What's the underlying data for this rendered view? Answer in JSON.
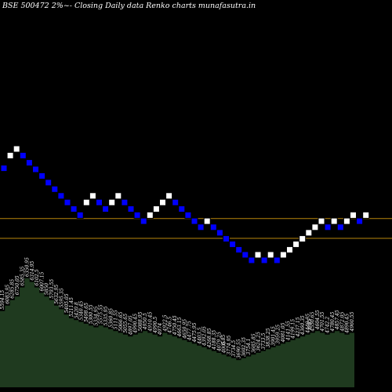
{
  "chart_data": {
    "type": "renko",
    "title": "BSE 500472  2%~-  Closing Daily data  Renko  charts munafasutra.in",
    "colors": {
      "background": "#000000",
      "up_brick": "#ffffff",
      "down_brick": "#0000ff",
      "brick_outline": "#000000",
      "reference_line": "#b8860b",
      "volume_fill": "#1f3a1f",
      "volume_label": "#ffffff"
    },
    "reference_levels": [
      5380,
      4950
    ],
    "bricks": [
      {
        "dir": "down",
        "value": 6250
      },
      {
        "dir": "up",
        "value": 6480
      },
      {
        "dir": "up",
        "value": 6600
      },
      {
        "dir": "down",
        "value": 6480
      },
      {
        "dir": "down",
        "value": 6350
      },
      {
        "dir": "down",
        "value": 6230
      },
      {
        "dir": "down",
        "value": 6110
      },
      {
        "dir": "down",
        "value": 5990
      },
      {
        "dir": "down",
        "value": 5870
      },
      {
        "dir": "down",
        "value": 5750
      },
      {
        "dir": "down",
        "value": 5630
      },
      {
        "dir": "down",
        "value": 5510
      },
      {
        "dir": "down",
        "value": 5400
      },
      {
        "dir": "up",
        "value": 5630
      },
      {
        "dir": "up",
        "value": 5750
      },
      {
        "dir": "down",
        "value": 5630
      },
      {
        "dir": "down",
        "value": 5510
      },
      {
        "dir": "up",
        "value": 5630
      },
      {
        "dir": "up",
        "value": 5750
      },
      {
        "dir": "down",
        "value": 5630
      },
      {
        "dir": "down",
        "value": 5510
      },
      {
        "dir": "down",
        "value": 5400
      },
      {
        "dir": "down",
        "value": 5290
      },
      {
        "dir": "up",
        "value": 5400
      },
      {
        "dir": "up",
        "value": 5510
      },
      {
        "dir": "up",
        "value": 5630
      },
      {
        "dir": "up",
        "value": 5750
      },
      {
        "dir": "down",
        "value": 5630
      },
      {
        "dir": "down",
        "value": 5510
      },
      {
        "dir": "down",
        "value": 5400
      },
      {
        "dir": "down",
        "value": 5290
      },
      {
        "dir": "down",
        "value": 5180
      },
      {
        "dir": "up",
        "value": 5290
      },
      {
        "dir": "down",
        "value": 5180
      },
      {
        "dir": "down",
        "value": 5080
      },
      {
        "dir": "down",
        "value": 4970
      },
      {
        "dir": "down",
        "value": 4870
      },
      {
        "dir": "down",
        "value": 4770
      },
      {
        "dir": "down",
        "value": 4680
      },
      {
        "dir": "down",
        "value": 4580
      },
      {
        "dir": "up",
        "value": 4680
      },
      {
        "dir": "down",
        "value": 4580
      },
      {
        "dir": "up",
        "value": 4680
      },
      {
        "dir": "down",
        "value": 4580
      },
      {
        "dir": "up",
        "value": 4680
      },
      {
        "dir": "up",
        "value": 4770
      },
      {
        "dir": "up",
        "value": 4870
      },
      {
        "dir": "up",
        "value": 4970
      },
      {
        "dir": "up",
        "value": 5080
      },
      {
        "dir": "up",
        "value": 5180
      },
      {
        "dir": "up",
        "value": 5290
      },
      {
        "dir": "down",
        "value": 5180
      },
      {
        "dir": "up",
        "value": 5290
      },
      {
        "dir": "down",
        "value": 5180
      },
      {
        "dir": "up",
        "value": 5290
      },
      {
        "dir": "up",
        "value": 5400
      },
      {
        "dir": "down",
        "value": 5290
      },
      {
        "dir": "up",
        "value": 5400
      }
    ],
    "volume_bars": [
      {
        "value": 0.42,
        "label": "5594.15"
      },
      {
        "value": 0.45,
        "label": "6083.95"
      },
      {
        "value": 0.48,
        "label": "6285.85"
      },
      {
        "value": 0.5,
        "label": "6750.05"
      },
      {
        "value": 0.55,
        "label": "6585.35"
      },
      {
        "value": 0.6,
        "label": "6350.95"
      },
      {
        "value": 0.58,
        "label": "6314.95"
      },
      {
        "value": 0.55,
        "label": "6102.5"
      },
      {
        "value": 0.52,
        "label": "6007.15"
      },
      {
        "value": 0.5,
        "label": "5850"
      },
      {
        "value": 0.48,
        "label": "5793.55"
      },
      {
        "value": 0.45,
        "label": "5632.95"
      },
      {
        "value": 0.43,
        "label": "5595.35"
      },
      {
        "value": 0.4,
        "label": "5405.05"
      },
      {
        "value": 0.38,
        "label": "5211.45"
      },
      {
        "value": 0.37,
        "label": "5420.8"
      },
      {
        "value": 0.36,
        "label": "5340.45"
      },
      {
        "value": 0.35,
        "label": "5498.65"
      },
      {
        "value": 0.34,
        "label": "5300.55"
      },
      {
        "value": 0.33,
        "label": "5334.95"
      },
      {
        "value": 0.34,
        "label": "5575.55"
      },
      {
        "value": 0.33,
        "label": "5335.95"
      },
      {
        "value": 0.32,
        "label": "5360.85"
      },
      {
        "value": 0.31,
        "label": "5111.55"
      },
      {
        "value": 0.3,
        "label": "5066.65"
      },
      {
        "value": 0.29,
        "label": "5055.65"
      },
      {
        "value": 0.28,
        "label": "4897.05"
      },
      {
        "value": 0.29,
        "label": "4990.45"
      },
      {
        "value": 0.3,
        "label": "5088.95"
      },
      {
        "value": 0.31,
        "label": "4950.5"
      },
      {
        "value": 0.3,
        "label": "4910.45"
      },
      {
        "value": 0.29,
        "label": "4990.5"
      },
      {
        "value": 0.28,
        "label": "4974"
      },
      {
        "value": 0.3,
        "label": "4922.5"
      },
      {
        "value": 0.29,
        "label": "4746.5"
      },
      {
        "value": 0.28,
        "label": "4750.45"
      },
      {
        "value": 0.27,
        "label": "4663.15"
      },
      {
        "value": 0.26,
        "label": "4650.95"
      },
      {
        "value": 0.25,
        "label": "4477.75"
      },
      {
        "value": 0.24,
        "label": "4475.95"
      },
      {
        "value": 0.23,
        "label": "4403.5"
      },
      {
        "value": 0.22,
        "label": "4392.05"
      },
      {
        "value": 0.21,
        "label": "4268.85"
      },
      {
        "value": 0.2,
        "label": "4188.35"
      },
      {
        "value": 0.19,
        "label": "4079.25"
      },
      {
        "value": 0.18,
        "label": "4005"
      },
      {
        "value": 0.17,
        "label": "3774.95"
      },
      {
        "value": 0.16,
        "label": "3734.5"
      },
      {
        "value": 0.15,
        "label": "3690.55"
      },
      {
        "value": 0.16,
        "label": "3602.35"
      },
      {
        "value": 0.17,
        "label": "3754.1"
      },
      {
        "value": 0.18,
        "label": "3685.85"
      },
      {
        "value": 0.19,
        "label": "3624.25"
      },
      {
        "value": 0.2,
        "label": "3733.5"
      },
      {
        "value": 0.21,
        "label": "3838.25"
      },
      {
        "value": 0.22,
        "label": "3901.45"
      },
      {
        "value": 0.23,
        "label": "3959.25"
      },
      {
        "value": 0.24,
        "label": "4081.05"
      },
      {
        "value": 0.25,
        "label": "4141.55"
      },
      {
        "value": 0.26,
        "label": "4199.15"
      },
      {
        "value": 0.27,
        "label": "4237.15"
      },
      {
        "value": 0.28,
        "label": "4360.35"
      },
      {
        "value": 0.29,
        "label": "4440.95"
      },
      {
        "value": 0.3,
        "label": "4550.65"
      },
      {
        "value": 0.31,
        "label": "4604.55"
      },
      {
        "value": 0.3,
        "label": "4701.55"
      },
      {
        "value": 0.29,
        "label": "4742.2"
      },
      {
        "value": 0.3,
        "label": "4780.45"
      },
      {
        "value": 0.31,
        "label": "4857.45"
      },
      {
        "value": 0.3,
        "label": "4872.05"
      },
      {
        "value": 0.29,
        "label": "4890.45"
      },
      {
        "value": 0.3,
        "label": "4960.55"
      }
    ],
    "isolated_labels": [
      "6.85",
      "6.85",
      "6.85"
    ]
  }
}
